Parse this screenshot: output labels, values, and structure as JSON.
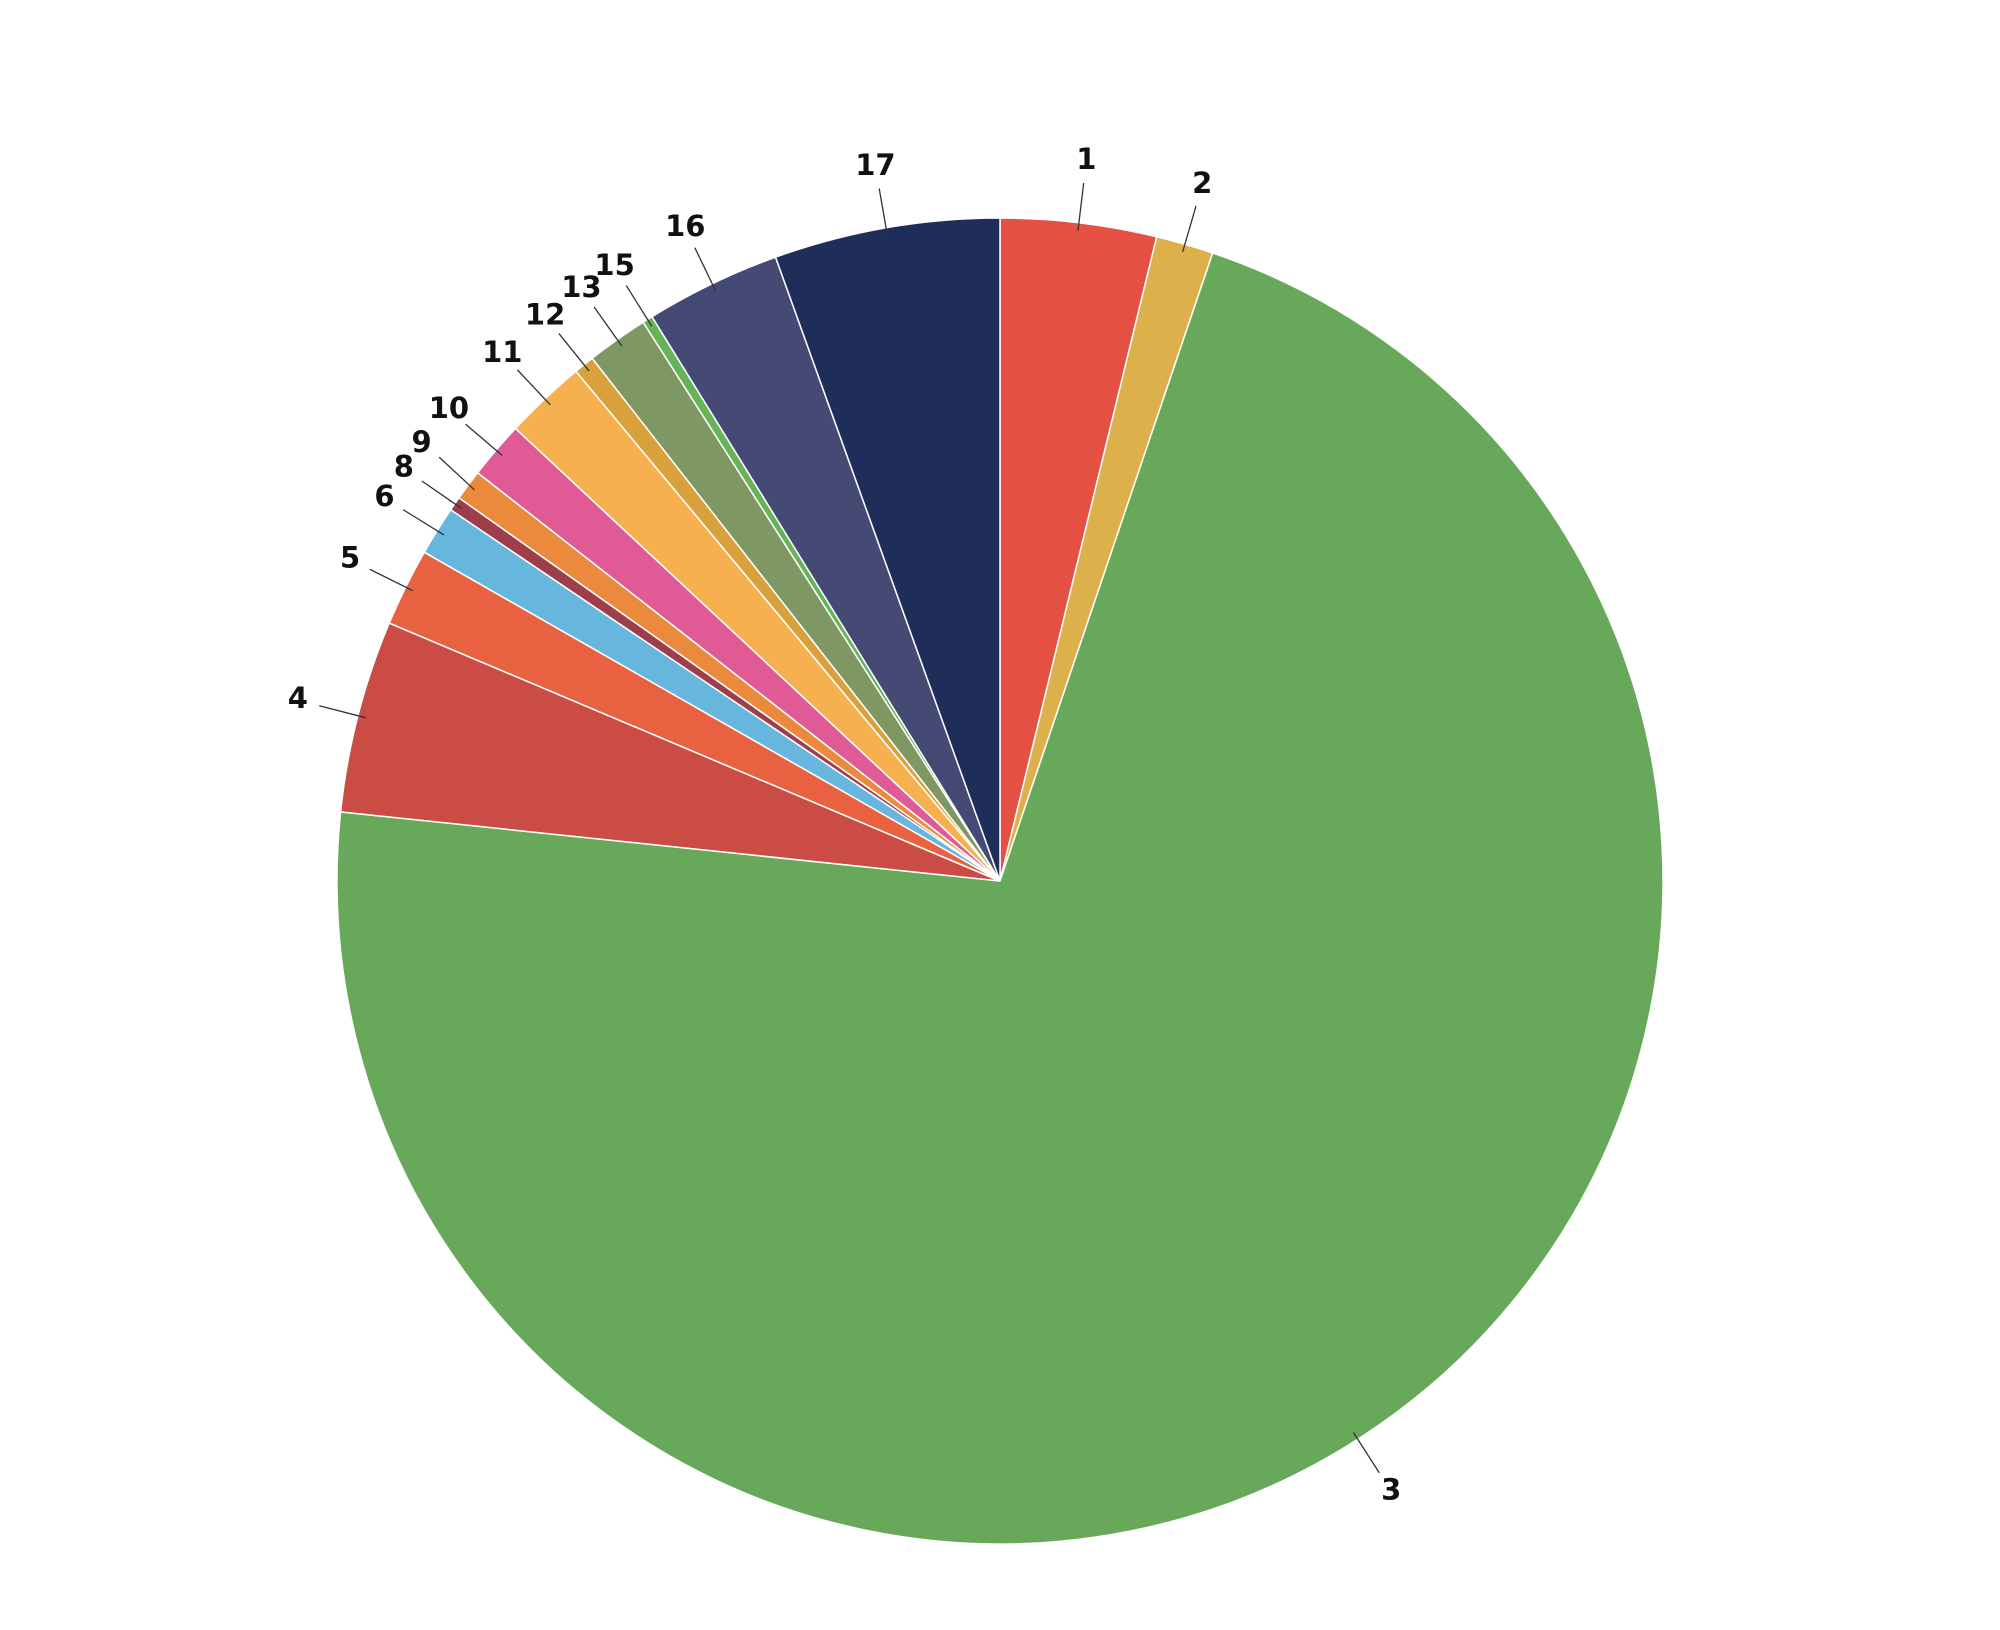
{
  "chart_data": {
    "type": "pie",
    "categories": [
      "1",
      "2",
      "3",
      "4",
      "5",
      "6",
      "8",
      "9",
      "10",
      "11",
      "12",
      "13",
      "15",
      "16",
      "17"
    ],
    "values": [
      3.8,
      1.4,
      71.5,
      4.7,
      1.9,
      1.2,
      0.35,
      0.75,
      1.4,
      2.0,
      0.5,
      1.5,
      0.25,
      3.3,
      5.5
    ],
    "colors": [
      "#e45142",
      "#dcb14b",
      "#67a85a",
      "#cb4c44",
      "#e86141",
      "#66b6de",
      "#9e3e4a",
      "#eb8a3c",
      "#e05a95",
      "#f7b04f",
      "#d9a13c",
      "#7e9763",
      "#66b35a",
      "#454a74",
      "#1f2d5b"
    ]
  }
}
